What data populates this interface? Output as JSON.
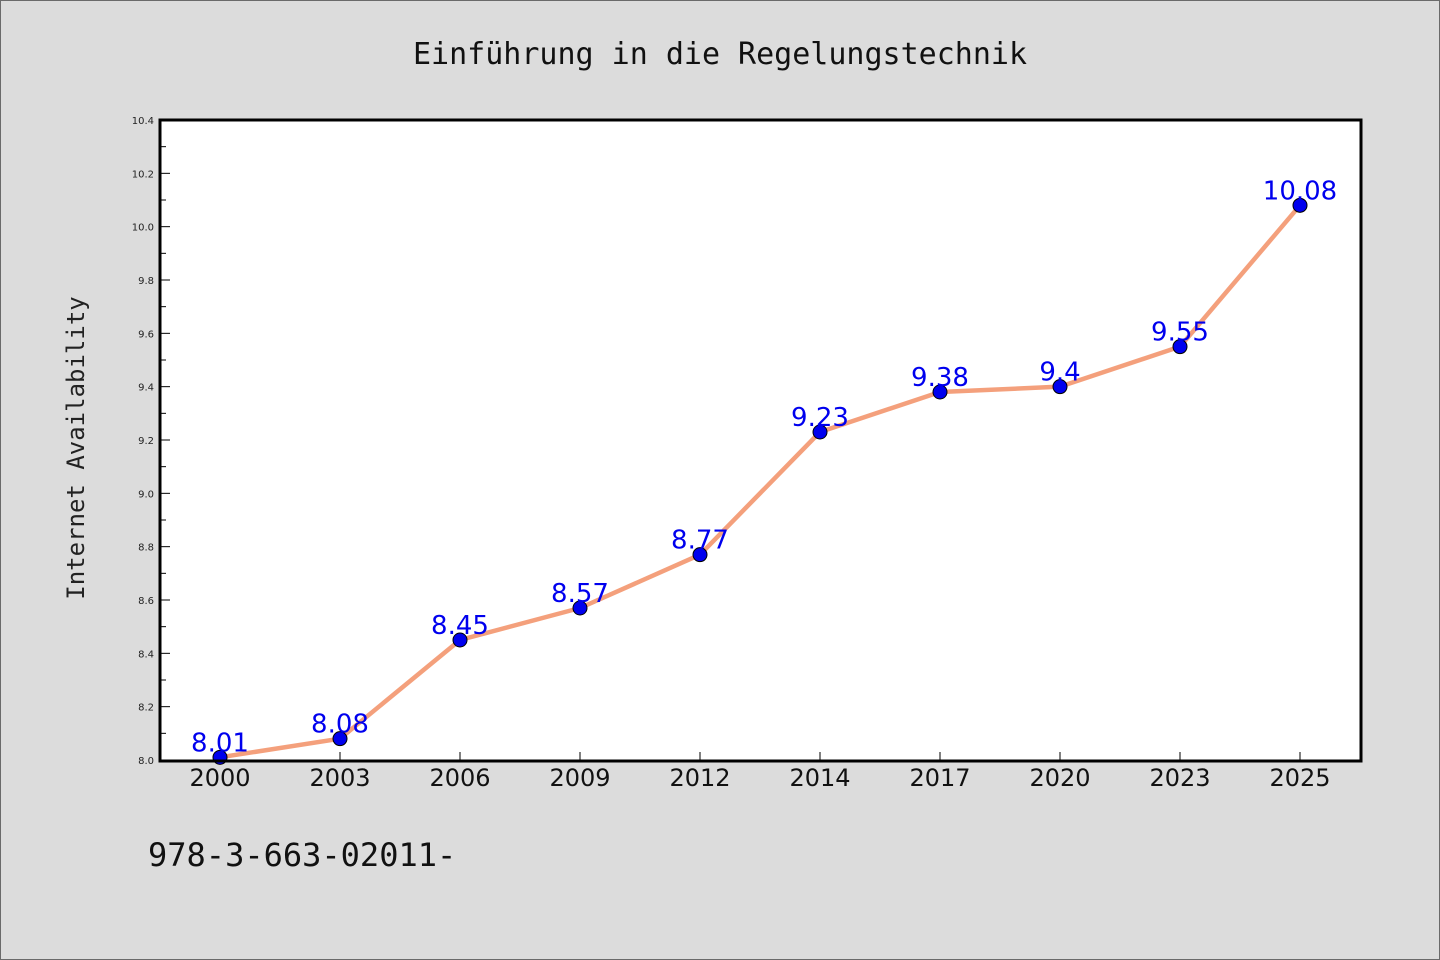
{
  "chart_data": {
    "type": "line",
    "title": "Einführung in die Regelungstechnik",
    "xlabel": "",
    "ylabel": "Internet Availability",
    "categories": [
      "2000",
      "2003",
      "2006",
      "2009",
      "2012",
      "2014",
      "2017",
      "2020",
      "2023",
      "2025"
    ],
    "values": [
      8.01,
      8.08,
      8.45,
      8.57,
      8.77,
      9.23,
      9.38,
      9.4,
      9.55,
      10.08
    ],
    "data_labels": [
      "8.01",
      "8.08",
      "8.45",
      "8.57",
      "8.77",
      "9.23",
      "9.38",
      "9.4",
      "9.55",
      "10.08"
    ],
    "ylim": [
      8.0,
      10.4
    ],
    "yticks": [
      "8.0",
      "8.2",
      "8.4",
      "8.6",
      "8.8",
      "9.0",
      "9.2",
      "9.4",
      "9.6",
      "9.8",
      "10.0",
      "10.2",
      "10.4"
    ],
    "grid": false,
    "line_color": "#f4a07c",
    "marker_color": "#0000ee",
    "label_color": "#0000ee",
    "background": "#dcdcdc",
    "plot_background": "#ffffff"
  },
  "footer": {
    "text": "978-3-663-02011-"
  }
}
